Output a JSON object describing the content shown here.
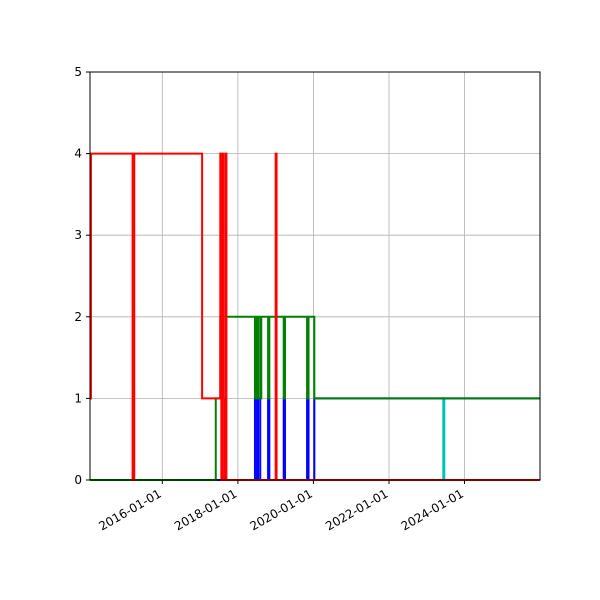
{
  "chart_data": {
    "type": "line",
    "drawstyle": "steps-post",
    "title": "",
    "xlabel": "",
    "ylabel": "",
    "x_axis_type": "date",
    "xlim": [
      "2014-02-01",
      "2025-12-31"
    ],
    "ylim": [
      0,
      5
    ],
    "grid": true,
    "legend": "none",
    "x_ticks": [
      "2016-01-01",
      "2018-01-01",
      "2020-01-01",
      "2022-01-01",
      "2024-01-01"
    ],
    "y_ticks": [
      "0",
      "1",
      "2",
      "3",
      "4",
      "5"
    ],
    "series": [
      {
        "color": "#00bfbf",
        "points": [
          [
            "2014-02-01",
            0
          ],
          [
            "2023-06-10",
            0
          ],
          [
            "2023-06-10",
            1
          ],
          [
            "2023-06-20",
            1
          ],
          [
            "2023-06-20",
            0
          ],
          [
            "2025-12-31",
            0
          ]
        ]
      },
      {
        "color": "#0000ff",
        "points": [
          [
            "2014-02-01",
            0
          ],
          [
            "2018-06-15",
            0
          ],
          [
            "2018-06-15",
            1
          ],
          [
            "2018-07-05",
            1
          ],
          [
            "2018-07-05",
            0
          ],
          [
            "2018-07-15",
            0
          ],
          [
            "2018-07-15",
            1
          ],
          [
            "2018-08-05",
            1
          ],
          [
            "2018-08-05",
            0
          ],
          [
            "2018-10-20",
            0
          ],
          [
            "2018-10-20",
            1
          ],
          [
            "2018-11-01",
            1
          ],
          [
            "2018-11-01",
            0
          ],
          [
            "2019-03-20",
            0
          ],
          [
            "2019-03-20",
            1
          ],
          [
            "2019-04-01",
            1
          ],
          [
            "2019-04-01",
            0
          ],
          [
            "2019-11-01",
            0
          ],
          [
            "2019-11-01",
            1
          ],
          [
            "2019-11-15",
            1
          ],
          [
            "2019-11-15",
            0
          ],
          [
            "2020-01-10",
            0
          ],
          [
            "2020-01-10",
            1
          ],
          [
            "2025-12-31",
            1
          ]
        ]
      },
      {
        "color": "#008000",
        "points": [
          [
            "2014-02-01",
            0
          ],
          [
            "2017-06-01",
            0
          ],
          [
            "2017-06-01",
            1
          ],
          [
            "2017-07-15",
            1
          ],
          [
            "2017-07-15",
            2
          ],
          [
            "2018-06-15",
            2
          ],
          [
            "2018-06-15",
            1
          ],
          [
            "2018-06-25",
            1
          ],
          [
            "2018-06-25",
            2
          ],
          [
            "2018-07-05",
            2
          ],
          [
            "2018-07-05",
            1
          ],
          [
            "2018-07-15",
            1
          ],
          [
            "2018-07-15",
            2
          ],
          [
            "2018-08-05",
            2
          ],
          [
            "2018-08-05",
            1
          ],
          [
            "2018-08-15",
            1
          ],
          [
            "2018-08-15",
            2
          ],
          [
            "2018-10-20",
            2
          ],
          [
            "2018-10-20",
            1
          ],
          [
            "2018-11-01",
            1
          ],
          [
            "2018-11-01",
            2
          ],
          [
            "2019-03-20",
            2
          ],
          [
            "2019-03-20",
            1
          ],
          [
            "2019-04-01",
            1
          ],
          [
            "2019-04-01",
            2
          ],
          [
            "2019-11-01",
            2
          ],
          [
            "2019-11-01",
            1
          ],
          [
            "2019-11-15",
            1
          ],
          [
            "2019-11-15",
            2
          ],
          [
            "2020-01-10",
            2
          ],
          [
            "2020-01-10",
            1
          ],
          [
            "2025-12-31",
            1
          ]
        ]
      },
      {
        "color": "#ff0000",
        "points": [
          [
            "2014-02-01",
            1
          ],
          [
            "2014-02-10",
            1
          ],
          [
            "2014-02-10",
            4
          ],
          [
            "2015-03-20",
            4
          ],
          [
            "2015-03-20",
            0
          ],
          [
            "2015-04-05",
            0
          ],
          [
            "2015-04-05",
            4
          ],
          [
            "2017-01-20",
            4
          ],
          [
            "2017-01-20",
            1
          ],
          [
            "2017-07-15",
            1
          ],
          [
            "2017-07-15",
            4
          ],
          [
            "2017-07-25",
            4
          ],
          [
            "2017-07-25",
            0
          ],
          [
            "2017-08-05",
            0
          ],
          [
            "2017-08-05",
            4
          ],
          [
            "2017-08-15",
            4
          ],
          [
            "2017-08-15",
            1
          ],
          [
            "2017-08-25",
            1
          ],
          [
            "2017-08-25",
            0
          ],
          [
            "2017-09-05",
            0
          ],
          [
            "2017-09-05",
            4
          ],
          [
            "2017-09-12",
            4
          ],
          [
            "2017-09-12",
            0
          ],
          [
            "2019-01-01",
            0
          ],
          [
            "2019-01-01",
            4
          ],
          [
            "2019-01-10",
            4
          ],
          [
            "2019-01-10",
            0
          ],
          [
            "2025-12-31",
            0
          ]
        ]
      }
    ]
  }
}
